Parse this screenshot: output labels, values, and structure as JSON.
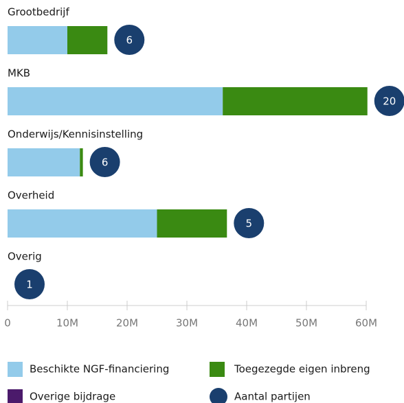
{
  "chart_data": {
    "type": "bar",
    "orientation": "horizontal",
    "categories": [
      "Grootbedrijf",
      "MKB",
      "Onderwijs/Kennisinstelling",
      "Overheid",
      "Overig"
    ],
    "series": [
      {
        "name": "Beschikte NGF-financiering",
        "color": "#93cbea",
        "values": [
          10000000,
          36000000,
          12100000,
          25000000,
          0
        ]
      },
      {
        "name": "Toegezegde eigen inbreng",
        "color": "#3a8a12",
        "values": [
          6700000,
          24200000,
          500000,
          11700000,
          0
        ]
      },
      {
        "name": "Overige bijdrage",
        "color": "#4b1a6b",
        "values": [
          0,
          0,
          0,
          0,
          0
        ]
      },
      {
        "name": "Aantal partijen",
        "color": "#1a3f6e",
        "type": "circle",
        "values": [
          6,
          20,
          6,
          5,
          1
        ]
      }
    ],
    "xlim": [
      0,
      60000000
    ],
    "xticks": [
      0,
      {
        "value": 10000000,
        "label": "10M"
      },
      {
        "value": 20000000,
        "label": "20M"
      },
      {
        "value": 30000000,
        "label": "30M"
      },
      {
        "value": 40000000,
        "label": "40M"
      },
      {
        "value": 50000000,
        "label": "50M"
      },
      {
        "value": 60000000,
        "label": "60M"
      }
    ]
  }
}
